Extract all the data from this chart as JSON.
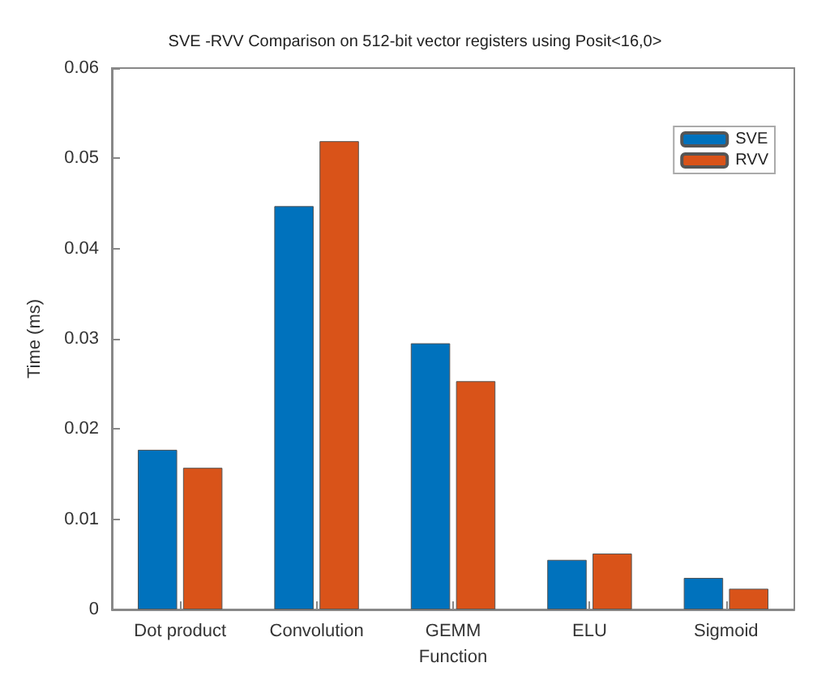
{
  "chart_data": {
    "type": "bar",
    "title": "SVE -RVV Comparison on 512-bit vector registers using Posit<16,0>",
    "xlabel": "Function",
    "ylabel": "Time (ms)",
    "categories": [
      "Dot product",
      "Convolution",
      "GEMM",
      "ELU",
      "Sigmoid"
    ],
    "series": [
      {
        "name": "SVE",
        "color": "#0072bd",
        "values": [
          0.0177,
          0.0447,
          0.0295,
          0.0055,
          0.0035
        ]
      },
      {
        "name": "RVV",
        "color": "#d95319",
        "values": [
          0.0157,
          0.0519,
          0.0253,
          0.0062,
          0.0023
        ]
      }
    ],
    "ylim": [
      0,
      0.06
    ],
    "yticks": [
      0,
      0.01,
      0.02,
      0.03,
      0.04,
      0.05,
      0.06
    ],
    "grid": false,
    "legend": "top right"
  }
}
